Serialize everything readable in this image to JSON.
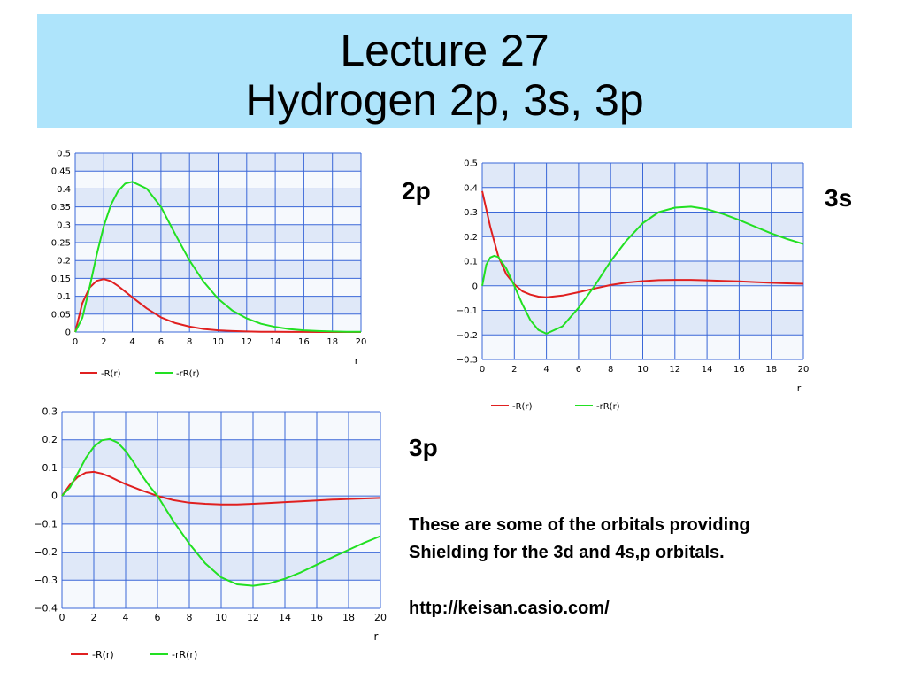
{
  "slide": {
    "title_line1": "Lecture 27",
    "title_line2": "Hydrogen 2p, 3s, 3p",
    "label_2p": "2p",
    "label_3s": "3s",
    "label_3p": "3p",
    "note_line1": "These are some of the orbitals providing",
    "note_line2": "Shielding for the 3d and 4s,p orbitals.",
    "url": "http://keisan.casio.com/"
  },
  "colors": {
    "banner": "#aee4fb",
    "plot_band_light": "#f6f9fd",
    "plot_band_dark": "#dfe8f8",
    "grid": "#3a67d8",
    "R": "#e02020",
    "rR": "#22e022"
  },
  "chart_data": [
    {
      "id": "2p",
      "type": "line",
      "xlabel": "r",
      "xlim": [
        0,
        20
      ],
      "ylim": [
        0,
        0.5
      ],
      "xticks": [
        "0",
        "2",
        "4",
        "6",
        "8",
        "10",
        "12",
        "14",
        "16",
        "18",
        "20"
      ],
      "yticks": [
        "0",
        "0.05",
        "0.1",
        "0.15",
        "0.2",
        "0.25",
        "0.3",
        "0.35",
        "0.4",
        "0.45",
        "0.5"
      ],
      "legend_position": "bottom",
      "series": [
        {
          "name": "-R(r)",
          "color": "#e02020",
          "x": [
            0,
            0.5,
            1,
            1.5,
            2,
            2.5,
            3,
            3.5,
            4,
            5,
            6,
            7,
            8,
            9,
            10,
            11,
            12,
            13,
            14,
            15,
            16,
            17,
            18,
            19,
            20
          ],
          "y": [
            0,
            0.081,
            0.124,
            0.143,
            0.148,
            0.142,
            0.129,
            0.113,
            0.097,
            0.066,
            0.041,
            0.025,
            0.015,
            0.0085,
            0.0048,
            0.0027,
            0.0015,
            0.0008,
            0.00044,
            0.00024,
            0.00013,
            7e-05,
            4e-05,
            2e-05,
            1e-05
          ]
        },
        {
          "name": "-rR(r)",
          "color": "#22e022",
          "x": [
            0,
            0.5,
            1,
            1.5,
            2,
            2.5,
            3,
            3.5,
            4,
            5,
            6,
            7,
            8,
            9,
            10,
            11,
            12,
            13,
            14,
            15,
            16,
            17,
            18,
            19,
            20
          ],
          "y": [
            0,
            0.04,
            0.124,
            0.215,
            0.296,
            0.356,
            0.394,
            0.415,
            0.42,
            0.401,
            0.35,
            0.273,
            0.2,
            0.14,
            0.093,
            0.06,
            0.038,
            0.023,
            0.014,
            0.0081,
            0.0046,
            0.0026,
            0.0015,
            0.0008,
            0.0004
          ]
        }
      ]
    },
    {
      "id": "3s",
      "type": "line",
      "xlabel": "r",
      "xlim": [
        0,
        20
      ],
      "ylim": [
        -0.3,
        0.5
      ],
      "xticks": [
        "0",
        "2",
        "4",
        "6",
        "8",
        "10",
        "12",
        "14",
        "16",
        "18",
        "20"
      ],
      "yticks": [
        "−0.3",
        "−0.2",
        "−0.1",
        "0",
        "0.1",
        "0.2",
        "0.3",
        "0.4",
        "0.5"
      ],
      "legend_position": "bottom",
      "series": [
        {
          "name": "-R(r)",
          "color": "#e02020",
          "x": [
            0,
            0.5,
            1,
            1.5,
            2,
            2.5,
            3,
            3.5,
            4,
            5,
            6,
            7,
            8,
            9,
            10,
            11,
            12,
            13,
            14,
            15,
            16,
            17,
            18,
            19,
            20
          ],
          "y": [
            0.385,
            0.24,
            0.12,
            0.047,
            0.006,
            -0.022,
            -0.036,
            -0.044,
            -0.047,
            -0.04,
            -0.026,
            -0.011,
            0.003,
            0.013,
            0.019,
            0.023,
            0.024,
            0.024,
            0.022,
            0.02,
            0.018,
            0.015,
            0.012,
            0.01,
            0.008
          ]
        },
        {
          "name": "-rR(r)",
          "color": "#22e022",
          "x": [
            0,
            0.25,
            0.5,
            0.75,
            1,
            1.5,
            2,
            2.5,
            3,
            3.5,
            4,
            5,
            6,
            7,
            8,
            9,
            10,
            11,
            12,
            13,
            14,
            15,
            16,
            17,
            18,
            19,
            20
          ],
          "y": [
            0,
            0.085,
            0.115,
            0.122,
            0.117,
            0.07,
            0.0,
            -0.075,
            -0.14,
            -0.18,
            -0.195,
            -0.165,
            -0.09,
            0.0,
            0.1,
            0.185,
            0.255,
            0.3,
            0.318,
            0.322,
            0.312,
            0.292,
            0.268,
            0.24,
            0.213,
            0.19,
            0.17
          ]
        }
      ]
    },
    {
      "id": "3p",
      "type": "line",
      "xlabel": "r",
      "xlim": [
        0,
        20
      ],
      "ylim": [
        -0.4,
        0.3
      ],
      "xticks": [
        "0",
        "2",
        "4",
        "6",
        "8",
        "10",
        "12",
        "14",
        "16",
        "18",
        "20"
      ],
      "yticks": [
        "−0.4",
        "−0.3",
        "−0.2",
        "−0.1",
        "0",
        "0.1",
        "0.2",
        "0.3"
      ],
      "legend_position": "bottom",
      "series": [
        {
          "name": "-R(r)",
          "color": "#e02020",
          "x": [
            0,
            0.5,
            1,
            1.5,
            2,
            2.5,
            3,
            3.5,
            4,
            5,
            6,
            7,
            8,
            9,
            10,
            11,
            12,
            13,
            14,
            15,
            16,
            17,
            18,
            19,
            20
          ],
          "y": [
            0,
            0.04,
            0.068,
            0.083,
            0.086,
            0.08,
            0.069,
            0.055,
            0.042,
            0.02,
            0.0,
            -0.015,
            -0.024,
            -0.028,
            -0.03,
            -0.03,
            -0.028,
            -0.025,
            -0.022,
            -0.019,
            -0.016,
            -0.013,
            -0.011,
            -0.009,
            -0.007
          ]
        },
        {
          "name": "-rR(r)",
          "color": "#22e022",
          "x": [
            0,
            0.5,
            1,
            1.5,
            2,
            2.5,
            3,
            3.5,
            4,
            4.5,
            5,
            5.5,
            6,
            7,
            8,
            9,
            10,
            11,
            12,
            13,
            14,
            15,
            16,
            17,
            18,
            19,
            20
          ],
          "y": [
            0,
            0.03,
            0.082,
            0.135,
            0.175,
            0.198,
            0.203,
            0.19,
            0.16,
            0.12,
            0.075,
            0.035,
            0.0,
            -0.09,
            -0.17,
            -0.24,
            -0.29,
            -0.315,
            -0.32,
            -0.312,
            -0.295,
            -0.272,
            -0.245,
            -0.218,
            -0.192,
            -0.166,
            -0.143
          ]
        }
      ]
    }
  ]
}
